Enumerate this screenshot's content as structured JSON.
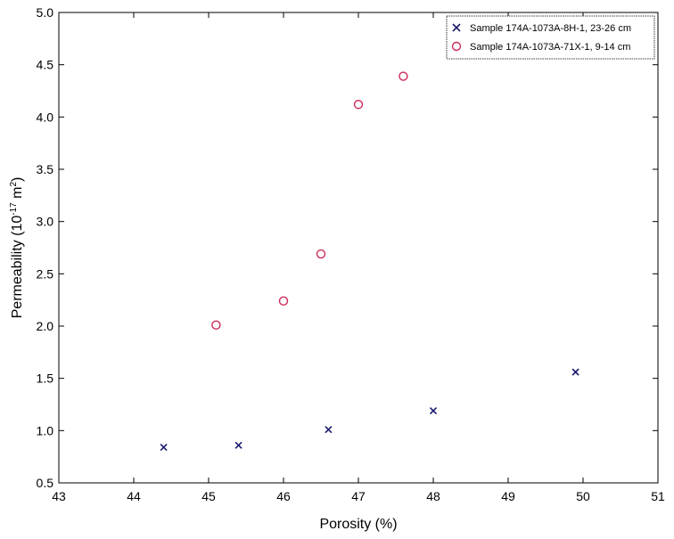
{
  "chart_data": {
    "type": "scatter",
    "title": "",
    "xlabel": "Porosity (%)",
    "ylabel_main": "Permeability (10",
    "ylabel_exp1": "-17",
    "ylabel_mid": " m",
    "ylabel_exp2": "2",
    "ylabel_end": ")",
    "xlim": [
      43,
      51
    ],
    "ylim": [
      0.5,
      5.0
    ],
    "xticks": [
      "43",
      "44",
      "45",
      "46",
      "47",
      "48",
      "49",
      "50",
      "51"
    ],
    "yticks": [
      "0.5",
      "1.0",
      "1.5",
      "2.0",
      "2.5",
      "3.0",
      "3.5",
      "4.0",
      "4.5",
      "5.0"
    ],
    "grid": false,
    "legend_position": "top-right",
    "series": [
      {
        "name": "Sample 174A-1073A-8H-1, 23-26 cm",
        "marker": "x",
        "color": "#1a1a6e",
        "points": [
          {
            "x": 44.4,
            "y": 0.84
          },
          {
            "x": 45.4,
            "y": 0.86
          },
          {
            "x": 46.6,
            "y": 1.01
          },
          {
            "x": 48.0,
            "y": 1.19
          },
          {
            "x": 49.9,
            "y": 1.56
          }
        ]
      },
      {
        "name": "Sample 174A-1073A-71X-1, 9-14 cm",
        "marker": "circle",
        "color": "#cc2a55",
        "points": [
          {
            "x": 45.1,
            "y": 2.01
          },
          {
            "x": 46.0,
            "y": 2.24
          },
          {
            "x": 46.5,
            "y": 2.69
          },
          {
            "x": 47.0,
            "y": 4.12
          },
          {
            "x": 47.6,
            "y": 4.39
          }
        ]
      }
    ]
  }
}
